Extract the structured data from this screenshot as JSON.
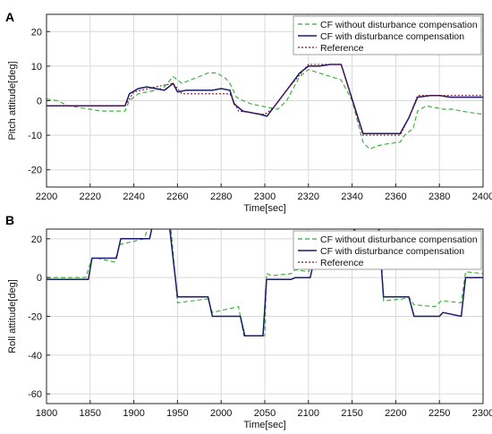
{
  "chart_data": [
    {
      "panel_label": "A",
      "type": "line",
      "title": "",
      "xlabel": "Time[sec]",
      "ylabel": "Pitch attitude[deg]",
      "xlim": [
        2200,
        2400
      ],
      "ylim": [
        -25,
        25
      ],
      "xticks": [
        2200,
        2220,
        2240,
        2260,
        2280,
        2300,
        2320,
        2340,
        2360,
        2380,
        2400
      ],
      "yticks": [
        -20,
        -10,
        0,
        10,
        20
      ],
      "grid": true,
      "legend_position": "top-right",
      "series": [
        {
          "name": "CF without disturbance compensation",
          "color": "#33aa33",
          "style": "dashed",
          "x": [
            2200,
            2205,
            2210,
            2215,
            2220,
            2225,
            2230,
            2236,
            2238,
            2242,
            2246,
            2250,
            2254,
            2258,
            2262,
            2266,
            2270,
            2274,
            2278,
            2282,
            2284,
            2287,
            2290,
            2294,
            2298,
            2302,
            2306,
            2310,
            2316,
            2320,
            2325,
            2330,
            2335,
            2340,
            2345,
            2348,
            2352,
            2356,
            2362,
            2364,
            2368,
            2370,
            2374,
            2378,
            2382,
            2386,
            2390,
            2395,
            2400
          ],
          "values": [
            0.5,
            0,
            -1.5,
            -2,
            -2.5,
            -3,
            -3,
            -3,
            0,
            2,
            2.5,
            3,
            4,
            7,
            5,
            6,
            7,
            8,
            8,
            6.5,
            5,
            1,
            0,
            -1,
            -1.5,
            -2,
            -2.5,
            0,
            7,
            9,
            8,
            7,
            6,
            0,
            -12,
            -14,
            -13,
            -12.5,
            -12,
            -10,
            -8,
            -3,
            -1.5,
            -2,
            -2.5,
            -2.5,
            -3,
            -3.5,
            -4
          ]
        },
        {
          "name": "CF with disturbance compensation",
          "color": "#1a1a6e",
          "style": "solid",
          "x": [
            2200,
            2210,
            2220,
            2230,
            2236,
            2238,
            2242,
            2246,
            2250,
            2254,
            2256,
            2258,
            2260,
            2264,
            2270,
            2276,
            2280,
            2284,
            2286,
            2290,
            2294,
            2298,
            2301,
            2304,
            2310,
            2316,
            2320,
            2325,
            2330,
            2335,
            2345,
            2350,
            2355,
            2362,
            2366,
            2370,
            2376,
            2380,
            2385,
            2390,
            2395,
            2400
          ],
          "values": [
            -1.5,
            -1.5,
            -1.5,
            -1.5,
            -1.5,
            2,
            3.5,
            4,
            3.5,
            3,
            4,
            5,
            2.5,
            3,
            3,
            3,
            3.5,
            3,
            -1,
            -3,
            -3.5,
            -4,
            -4.5,
            -2,
            3,
            8,
            10,
            10,
            10.5,
            10.5,
            -9.5,
            -9.5,
            -9.5,
            -9.5,
            -5,
            1,
            1.5,
            1.5,
            1,
            1,
            1,
            1
          ]
        },
        {
          "name": "Reference",
          "color": "#7a1030",
          "style": "dotted",
          "x": [
            2200,
            2220,
            2236,
            2240,
            2250,
            2254,
            2258,
            2262,
            2270,
            2280,
            2284,
            2288,
            2300,
            2304,
            2310,
            2320,
            2335,
            2345,
            2362,
            2366,
            2370,
            2380,
            2390,
            2400
          ],
          "values": [
            -1.5,
            -1.5,
            -1.5,
            2.5,
            4,
            4.5,
            5,
            2,
            2,
            2,
            2,
            -3,
            -4,
            -2,
            3,
            10.5,
            10.5,
            -10,
            -10,
            -5,
            1.5,
            1.5,
            1.5,
            1.5
          ]
        }
      ]
    },
    {
      "panel_label": "B",
      "type": "line",
      "title": "",
      "xlabel": "Time[sec]",
      "ylabel": "Roll attitude[deg]",
      "xlim": [
        1800,
        2300
      ],
      "ylim": [
        -65,
        25
      ],
      "xticks": [
        1800,
        1850,
        1900,
        1950,
        2000,
        2050,
        2100,
        2150,
        2200,
        2250,
        2300
      ],
      "yticks": [
        -60,
        -40,
        -20,
        0,
        20
      ],
      "grid": true,
      "legend_position": "top-right",
      "series": [
        {
          "name": "CF without disturbance compensation",
          "color": "#33aa33",
          "style": "dashed",
          "x": [
            1800,
            1845,
            1852,
            1858,
            1878,
            1884,
            1912,
            1918,
            1935,
            1942,
            1950,
            1985,
            1990,
            2020,
            2026,
            2050,
            2052,
            2058,
            2080,
            2085,
            2100,
            2105,
            2117,
            2122,
            2150,
            2154,
            2170,
            2176,
            2182,
            2186,
            2208,
            2215,
            2221,
            2245,
            2252,
            2275,
            2280,
            2300
          ],
          "values": [
            0,
            0,
            10,
            10,
            8,
            17,
            20,
            28,
            30,
            28,
            -13,
            -11,
            -18,
            -15,
            -30,
            -30,
            2,
            1,
            2,
            4,
            3,
            7,
            8,
            15,
            17,
            26,
            27,
            27,
            26,
            -12,
            -11,
            -10,
            -14,
            -15,
            -12,
            -13,
            3,
            2
          ]
        },
        {
          "name": "CF with disturbance compensation",
          "color": "#1a1a6e",
          "style": "solid",
          "x": [
            1800,
            1848,
            1852,
            1880,
            1885,
            1918,
            1923,
            1940,
            1950,
            1985,
            1990,
            2022,
            2027,
            2048,
            2052,
            2080,
            2085,
            2102,
            2107,
            2120,
            2125,
            2150,
            2155,
            2172,
            2180,
            2186,
            2215,
            2221,
            2250,
            2254,
            2275,
            2280,
            2300
          ],
          "values": [
            -1,
            -1,
            10,
            10,
            20,
            20,
            30,
            30,
            -10,
            -10,
            -20,
            -20,
            -30,
            -30,
            -1,
            -1,
            0,
            0,
            10,
            10,
            20,
            20,
            29,
            29,
            28,
            -10,
            -10,
            -20,
            -20,
            -18,
            -20,
            0,
            0
          ]
        }
      ]
    }
  ]
}
